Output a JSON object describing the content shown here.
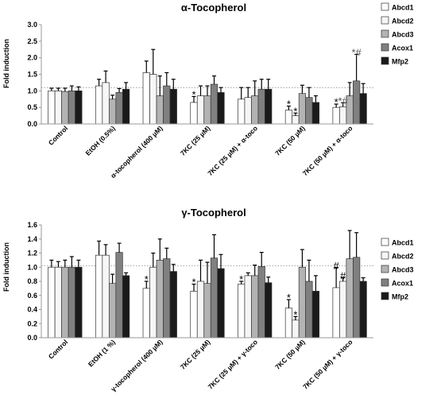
{
  "series_colors": [
    "#ffffff",
    "#f6f6f6",
    "#b3b3b3",
    "#808080",
    "#1a1a1a"
  ],
  "chart_data": [
    {
      "type": "bar",
      "title": "α-Tocopherol",
      "ylabel": "Fold induction",
      "ylim": [
        0,
        3
      ],
      "yticks": [
        "0.0",
        "0.5",
        "1.0",
        "1.5",
        "2.0",
        "2.5",
        "3.0"
      ],
      "reference_line": 1.1,
      "grid": false,
      "legend_position": "right",
      "categories": [
        "Control",
        "EtOH (0.5%)",
        "α-tocopherol (400 µM)",
        "7KC (25 µM)",
        "7KC (25 µM) + α-toco",
        "7KC (50 µM)",
        "7KC (50 µM) + α-toco"
      ],
      "series": [
        {
          "name": "Abcd1",
          "values": [
            1.0,
            1.15,
            1.55,
            0.65,
            0.75,
            0.42,
            0.5
          ],
          "errors": [
            0.08,
            0.2,
            0.35,
            0.18,
            0.35,
            0.12,
            0.1
          ]
        },
        {
          "name": "Abcd2",
          "values": [
            1.0,
            1.25,
            1.5,
            0.85,
            0.8,
            0.25,
            0.52
          ],
          "errors": [
            0.08,
            0.35,
            0.75,
            0.3,
            0.3,
            0.08,
            0.12
          ]
        },
        {
          "name": "Abcd3",
          "values": [
            0.98,
            0.75,
            0.85,
            0.85,
            0.85,
            0.92,
            0.85
          ],
          "errors": [
            0.1,
            0.12,
            0.6,
            0.3,
            0.45,
            0.25,
            0.4
          ]
        },
        {
          "name": "Acox1",
          "values": [
            1.0,
            0.95,
            1.15,
            1.2,
            1.05,
            0.8,
            1.3
          ],
          "errors": [
            0.15,
            0.12,
            0.4,
            0.25,
            0.3,
            0.3,
            0.8
          ]
        },
        {
          "name": "Mfp2",
          "values": [
            1.0,
            1.05,
            1.05,
            0.95,
            1.05,
            0.65,
            0.92
          ],
          "errors": [
            0.12,
            0.2,
            0.3,
            0.15,
            0.3,
            0.2,
            0.3
          ]
        }
      ],
      "annotations": [
        {
          "category": 3,
          "series": 0,
          "text": "*"
        },
        {
          "category": 5,
          "series": 0,
          "text": "*"
        },
        {
          "category": 5,
          "series": 1,
          "text": "*"
        },
        {
          "category": 6,
          "series": 0,
          "text": "*"
        },
        {
          "category": 6,
          "series": 1,
          "text": "*#"
        },
        {
          "category": 6,
          "series": 3,
          "text": "*#"
        }
      ]
    },
    {
      "type": "bar",
      "title": "γ-Tocopherol",
      "ylabel": "Fold induction",
      "ylim": [
        0,
        1.6
      ],
      "yticks": [
        "0.0",
        "0.2",
        "0.4",
        "0.6",
        "0.8",
        "1.0",
        "1.2",
        "1.4",
        "1.6"
      ],
      "reference_line": 1.02,
      "grid": false,
      "legend_position": "right",
      "categories": [
        "Control",
        "EtOH (1 %)",
        "γ-tocopherol (400 µM)",
        "7KC (25 µM)",
        "7KC (25 µM) + γ-toco",
        "7KC (50 µM)",
        "7KC (50 µM) + γ-toco"
      ],
      "series": [
        {
          "name": "Abcd1",
          "values": [
            1.0,
            1.17,
            0.7,
            0.66,
            0.76,
            0.42,
            0.71
          ],
          "errors": [
            0.1,
            0.2,
            0.1,
            0.1,
            0.04,
            0.12,
            0.28
          ]
        },
        {
          "name": "Abcd2",
          "values": [
            1.0,
            1.17,
            1.0,
            0.8,
            0.88,
            0.25,
            0.8
          ],
          "errors": [
            0.08,
            0.15,
            0.2,
            0.3,
            0.04,
            0.05,
            0.05
          ]
        },
        {
          "name": "Abcd3",
          "values": [
            1.0,
            0.77,
            1.1,
            0.77,
            0.88,
            1.0,
            1.12
          ],
          "errors": [
            0.1,
            0.13,
            0.3,
            0.3,
            0.15,
            0.25,
            0.4
          ]
        },
        {
          "name": "Acox1",
          "values": [
            1.0,
            1.21,
            1.12,
            1.13,
            1.01,
            0.8,
            1.14
          ],
          "errors": [
            0.15,
            0.13,
            0.15,
            0.33,
            0.2,
            0.3,
            0.35
          ]
        },
        {
          "name": "Mfp2",
          "values": [
            1.0,
            0.88,
            0.94,
            0.98,
            0.78,
            0.66,
            0.8
          ],
          "errors": [
            0.1,
            0.04,
            0.1,
            0.2,
            0.08,
            0.22,
            0.05
          ]
        }
      ],
      "annotations": [
        {
          "category": 2,
          "series": 0,
          "text": "*"
        },
        {
          "category": 3,
          "series": 0,
          "text": "*"
        },
        {
          "category": 4,
          "series": 0,
          "text": "*"
        },
        {
          "category": 5,
          "series": 0,
          "text": "*"
        },
        {
          "category": 5,
          "series": 1,
          "text": "*"
        },
        {
          "category": 6,
          "series": 0,
          "text": "#"
        },
        {
          "category": 6,
          "series": 1,
          "text": "#"
        }
      ]
    }
  ]
}
